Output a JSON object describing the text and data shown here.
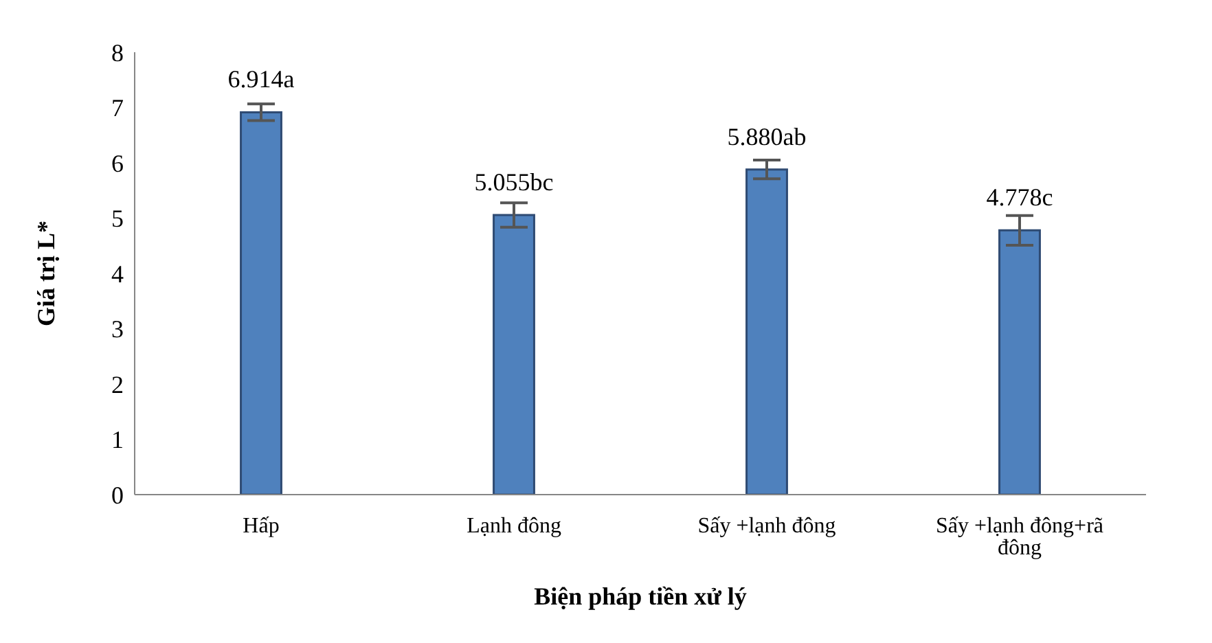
{
  "chart_data": {
    "type": "bar",
    "xlabel": "Biện pháp tiền xử lý",
    "ylabel": "Giá trị L*",
    "categories": [
      "Hấp",
      "Lạnh đông",
      "Sấy +lạnh đông",
      "Sấy +lạnh đông+rã đông"
    ],
    "values": [
      6.914,
      5.055,
      5.88,
      4.778
    ],
    "color": "#4f81bd",
    "errors": [
      0.15,
      0.22,
      0.17,
      0.27
    ],
    "value_labels": [
      "6.914a",
      "5.055bc",
      "5.880ab",
      "4.778c"
    ],
    "ylim": [
      0,
      8
    ],
    "yticks": [
      0,
      1,
      2,
      3,
      4,
      5,
      6,
      7,
      8
    ],
    "grid": false,
    "legend": false
  }
}
